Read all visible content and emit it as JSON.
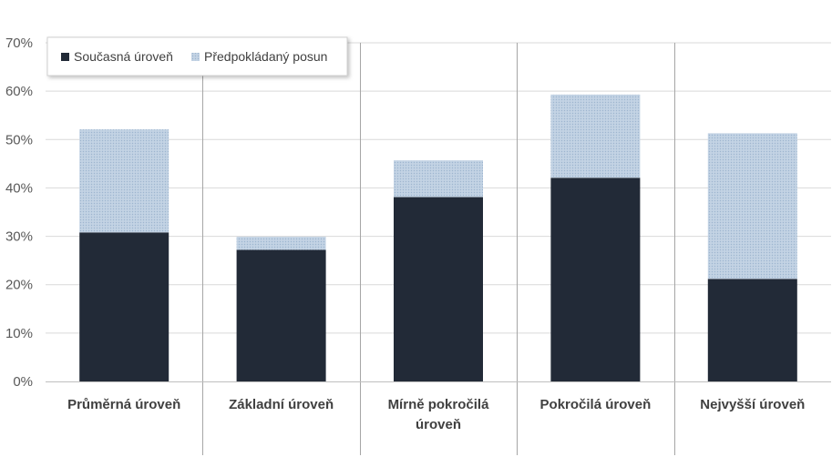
{
  "chart_data": {
    "type": "bar",
    "stacked": true,
    "title": "",
    "xlabel": "",
    "ylabel": "",
    "categories": [
      [
        "Průměrná úroveň"
      ],
      [
        "Základní úroveň"
      ],
      [
        "Mírně pokročilá",
        "úroveň"
      ],
      [
        "Pokročilá úroveň"
      ],
      [
        "Nejvyšší úroveň"
      ]
    ],
    "series": [
      {
        "name": "Současná úroveň",
        "values": [
          30.8,
          27.2,
          38.1,
          42.1,
          21.2
        ]
      },
      {
        "name": "Předpokládaný posun",
        "values": [
          21.3,
          2.7,
          7.6,
          17.2,
          30.1
        ]
      }
    ],
    "ylim": [
      0,
      70
    ],
    "yticks": [
      0,
      10,
      20,
      30,
      40,
      50,
      60,
      70
    ],
    "ytick_format": "{v}%",
    "grid": true,
    "legend_position": "top-left",
    "colors": {
      "series_0": "#222a37",
      "series_1": "#c3d3e4",
      "series_1_dots": "#9db5cf",
      "grid": "#d9d9d9",
      "axis": "#bfbfbf",
      "separator": "#a6a6a6"
    }
  }
}
